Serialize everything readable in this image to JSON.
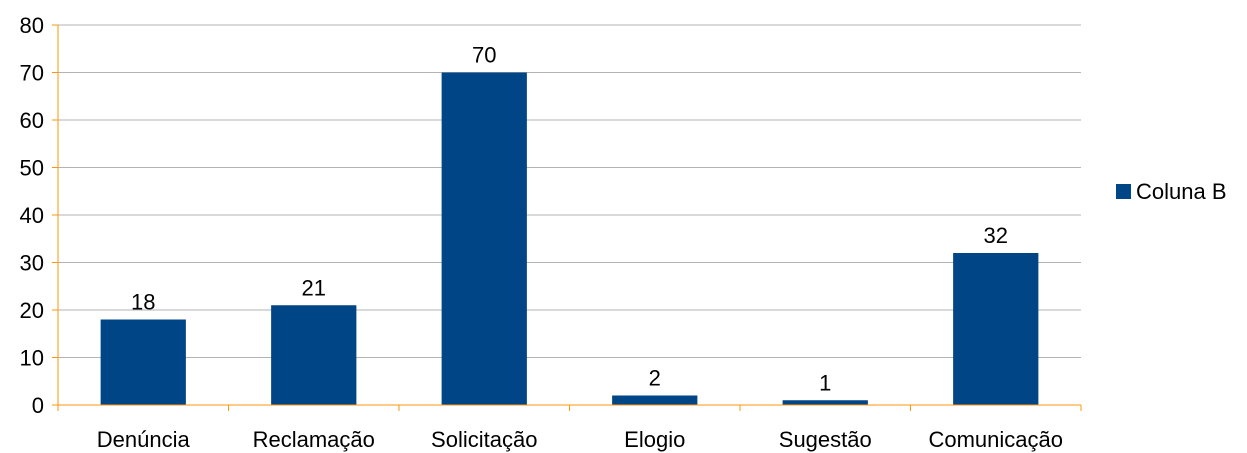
{
  "chart_data": {
    "type": "bar",
    "categories": [
      "Denúncia",
      "Reclamação",
      "Solicitação",
      "Elogio",
      "Sugestão",
      "Comunicação"
    ],
    "series": [
      {
        "name": "Coluna B",
        "values": [
          18,
          21,
          70,
          2,
          1,
          32
        ]
      }
    ],
    "ylim": [
      0,
      80
    ],
    "yticks": [
      0,
      10,
      20,
      30,
      40,
      50,
      60,
      70,
      80
    ],
    "data_labels": true,
    "grid": true,
    "legend": "right",
    "title": "",
    "xlabel": "",
    "ylabel": ""
  },
  "colors": {
    "bar": "#004586",
    "axis": "#ff950e",
    "grid": "#b3b3b3"
  },
  "legend": {
    "label": "Coluna B"
  }
}
